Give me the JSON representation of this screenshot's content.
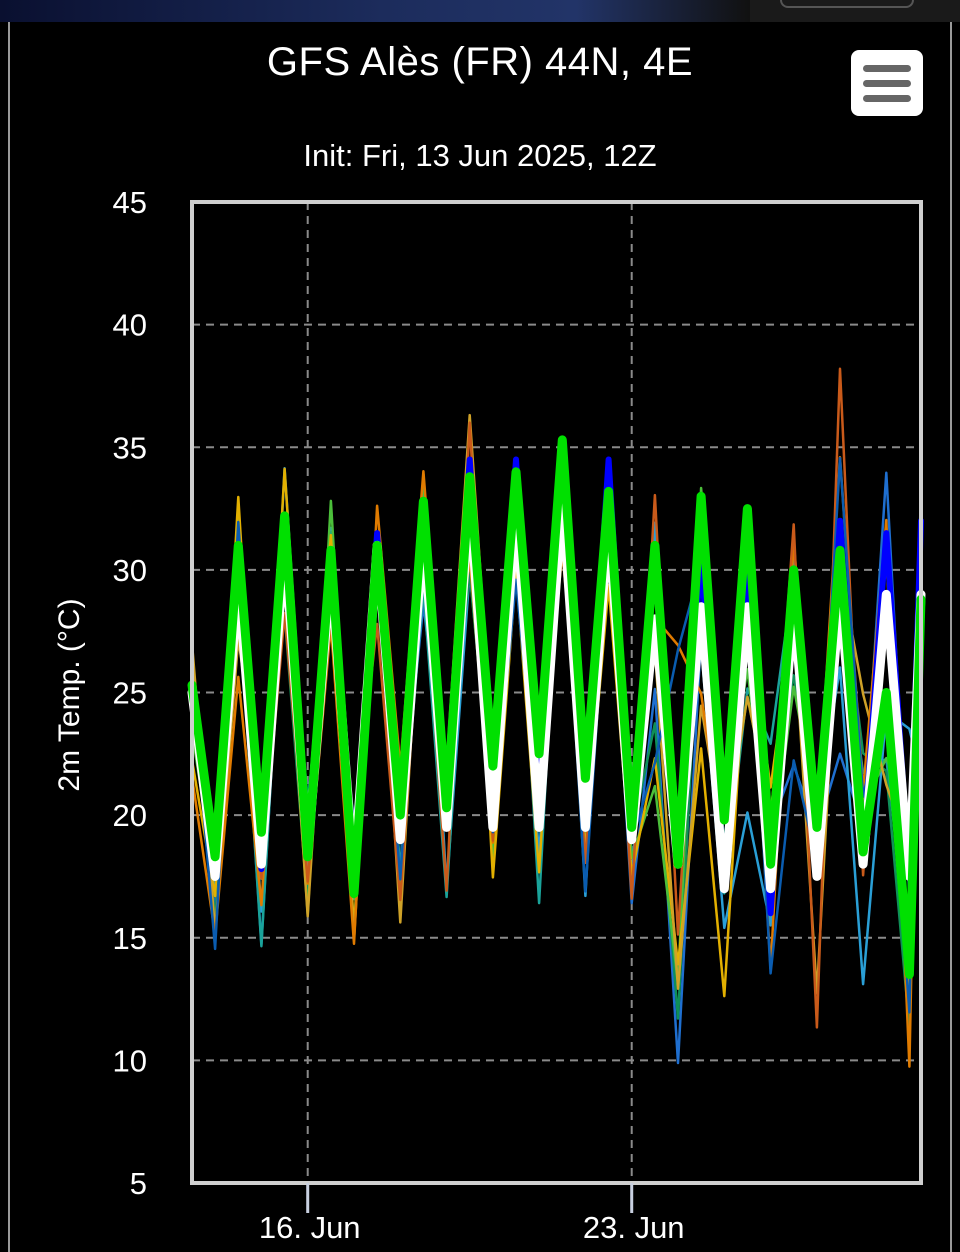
{
  "page": {
    "title": "GFS Alès (FR) 44N, 4E",
    "subtitle": "Init: Fri, 13 Jun 2025, 12Z",
    "menu_icon": "hamburger-menu-icon"
  },
  "chart_data": {
    "type": "line",
    "title": "GFS Alès (FR) 44N, 4E",
    "subtitle": "Init: Fri, 13 Jun 2025, 12Z",
    "xlabel": "",
    "ylabel": "2m Temp. (°C)",
    "ylim": [
      5,
      45
    ],
    "yticks": [
      5,
      10,
      15,
      20,
      25,
      30,
      35,
      40,
      45
    ],
    "xlim": [
      "2025-06-13T12:00",
      "2025-06-29T06:00"
    ],
    "xticks": [
      {
        "label": "16. Jun",
        "value": "2025-06-16T00:00"
      },
      {
        "label": "23. Jun",
        "value": "2025-06-23T00:00"
      }
    ],
    "grid": true,
    "legend": "none",
    "ensemble_colors": [
      "#1f6fd0",
      "#2a9fd6",
      "#1aa39a",
      "#0f8f58",
      "#4bbf3a",
      "#e3b000",
      "#cfa228",
      "#e07b00",
      "#c95a1a",
      "#0a5cb0"
    ],
    "series": [
      {
        "color": "#0000ff",
        "x": [
          "2025-06-13T12:00",
          "2025-06-14T00:00",
          "2025-06-14T12:00",
          "2025-06-15T00:00",
          "2025-06-15T12:00",
          "2025-06-16T00:00",
          "2025-06-16T12:00",
          "2025-06-17T00:00",
          "2025-06-17T12:00",
          "2025-06-18T00:00",
          "2025-06-18T12:00",
          "2025-06-19T00:00",
          "2025-06-19T12:00",
          "2025-06-20T00:00",
          "2025-06-20T12:00",
          "2025-06-21T00:00",
          "2025-06-21T12:00",
          "2025-06-22T00:00",
          "2025-06-22T12:00",
          "2025-06-23T00:00",
          "2025-06-23T12:00",
          "2025-06-24T00:00",
          "2025-06-24T12:00",
          "2025-06-25T00:00",
          "2025-06-25T12:00",
          "2025-06-26T00:00",
          "2025-06-26T12:00",
          "2025-06-27T00:00",
          "2025-06-27T12:00",
          "2025-06-28T00:00",
          "2025-06-28T12:00",
          "2025-06-29T00:00",
          "2025-06-29T06:00"
        ],
        "y": [
          25.0,
          17.8,
          30.5,
          17.8,
          31.5,
          18.5,
          30.5,
          17.0,
          31.5,
          19.2,
          32.5,
          19.8,
          34.5,
          20.0,
          34.5,
          20.5,
          35.0,
          20.0,
          34.5,
          19.0,
          30.5,
          18.5,
          30.5,
          17.5,
          30.5,
          16.0,
          30.0,
          17.5,
          32.0,
          18.5,
          31.5,
          17.5,
          32.0
        ]
      },
      {
        "color": "#ffffff",
        "x": [
          "2025-06-13T12:00",
          "2025-06-14T00:00",
          "2025-06-14T12:00",
          "2025-06-15T00:00",
          "2025-06-15T12:00",
          "2025-06-16T00:00",
          "2025-06-16T12:00",
          "2025-06-17T00:00",
          "2025-06-17T12:00",
          "2025-06-18T00:00",
          "2025-06-18T12:00",
          "2025-06-19T00:00",
          "2025-06-19T12:00",
          "2025-06-20T00:00",
          "2025-06-20T12:00",
          "2025-06-21T00:00",
          "2025-06-21T12:00",
          "2025-06-22T00:00",
          "2025-06-22T12:00",
          "2025-06-23T00:00",
          "2025-06-23T12:00",
          "2025-06-24T00:00",
          "2025-06-24T12:00",
          "2025-06-25T00:00",
          "2025-06-25T12:00",
          "2025-06-26T00:00",
          "2025-06-26T12:00",
          "2025-06-27T00:00",
          "2025-06-27T12:00",
          "2025-06-28T00:00",
          "2025-06-28T12:00",
          "2025-06-29T00:00",
          "2025-06-29T06:00"
        ],
        "y": [
          25.0,
          17.5,
          29.5,
          18.0,
          31.0,
          18.5,
          30.0,
          17.5,
          31.0,
          19.0,
          31.5,
          19.5,
          33.0,
          19.5,
          32.5,
          19.5,
          33.0,
          19.5,
          32.0,
          19.0,
          28.0,
          18.0,
          28.5,
          17.0,
          28.5,
          17.0,
          28.5,
          17.5,
          29.0,
          18.0,
          29.0,
          17.5,
          29.0
        ]
      },
      {
        "color": "#00e000",
        "x": [
          "2025-06-13T12:00",
          "2025-06-14T00:00",
          "2025-06-14T12:00",
          "2025-06-15T00:00",
          "2025-06-15T12:00",
          "2025-06-16T00:00",
          "2025-06-16T12:00",
          "2025-06-17T00:00",
          "2025-06-17T12:00",
          "2025-06-18T00:00",
          "2025-06-18T12:00",
          "2025-06-19T00:00",
          "2025-06-19T12:00",
          "2025-06-20T00:00",
          "2025-06-20T12:00",
          "2025-06-21T00:00",
          "2025-06-21T12:00",
          "2025-06-22T00:00",
          "2025-06-22T12:00",
          "2025-06-23T00:00",
          "2025-06-23T12:00",
          "2025-06-24T00:00",
          "2025-06-24T12:00",
          "2025-06-25T00:00",
          "2025-06-25T12:00",
          "2025-06-26T00:00",
          "2025-06-26T12:00",
          "2025-06-27T00:00",
          "2025-06-27T12:00",
          "2025-06-28T00:00",
          "2025-06-28T12:00",
          "2025-06-29T00:00",
          "2025-06-29T06:00"
        ],
        "y": [
          25.3,
          18.3,
          31.0,
          19.3,
          32.2,
          18.3,
          30.8,
          16.8,
          31.0,
          20.0,
          32.8,
          20.3,
          33.8,
          22.0,
          34.0,
          22.5,
          35.3,
          21.5,
          33.2,
          19.5,
          31.0,
          18.0,
          33.0,
          19.8,
          32.5,
          18.0,
          30.0,
          19.5,
          30.8,
          18.5,
          25.0,
          13.5,
          28.8
        ]
      }
    ]
  }
}
